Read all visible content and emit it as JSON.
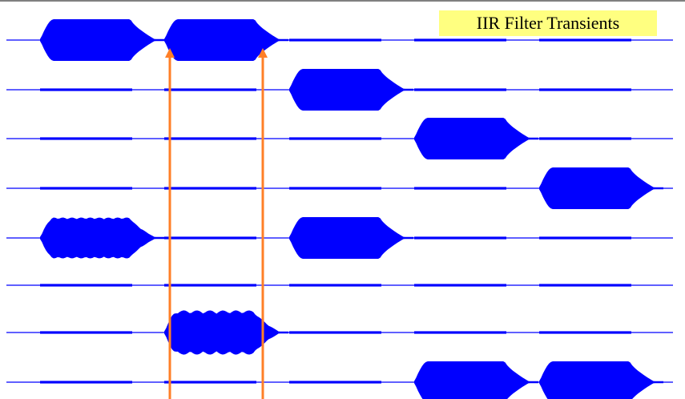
{
  "chart_data": {
    "type": "line",
    "title": "IIR Filter Transients",
    "xlabel": "",
    "ylabel": "",
    "grid": false,
    "legend": "none",
    "colors": {
      "signal": "#0000ff",
      "marker": "#ff7f27",
      "title_bg": "#ffff80"
    },
    "x_segments": 5,
    "series": [
      {
        "bursts": [
          {
            "segment": 0,
            "envelope": "smooth"
          },
          {
            "segment": 1,
            "envelope": "smooth"
          }
        ]
      },
      {
        "bursts": [
          {
            "segment": 2,
            "envelope": "smooth"
          }
        ]
      },
      {
        "bursts": [
          {
            "segment": 3,
            "envelope": "smooth"
          }
        ]
      },
      {
        "bursts": [
          {
            "segment": 4,
            "envelope": "smooth"
          }
        ]
      },
      {
        "bursts": [
          {
            "segment": 0,
            "envelope": "rippled"
          },
          {
            "segment": 2,
            "envelope": "smooth"
          }
        ]
      },
      {
        "bursts": []
      },
      {
        "bursts": [
          {
            "segment": 1,
            "envelope": "rippled-strong"
          }
        ]
      },
      {
        "bursts": [
          {
            "segment": 3,
            "envelope": "smooth"
          },
          {
            "segment": 4,
            "envelope": "smooth"
          }
        ]
      }
    ],
    "annotations": [
      {
        "type": "arrow",
        "at": "segment-1-start",
        "color": "#ff7f27"
      },
      {
        "type": "arrow",
        "at": "segment-1-end",
        "color": "#ff7f27"
      }
    ]
  }
}
